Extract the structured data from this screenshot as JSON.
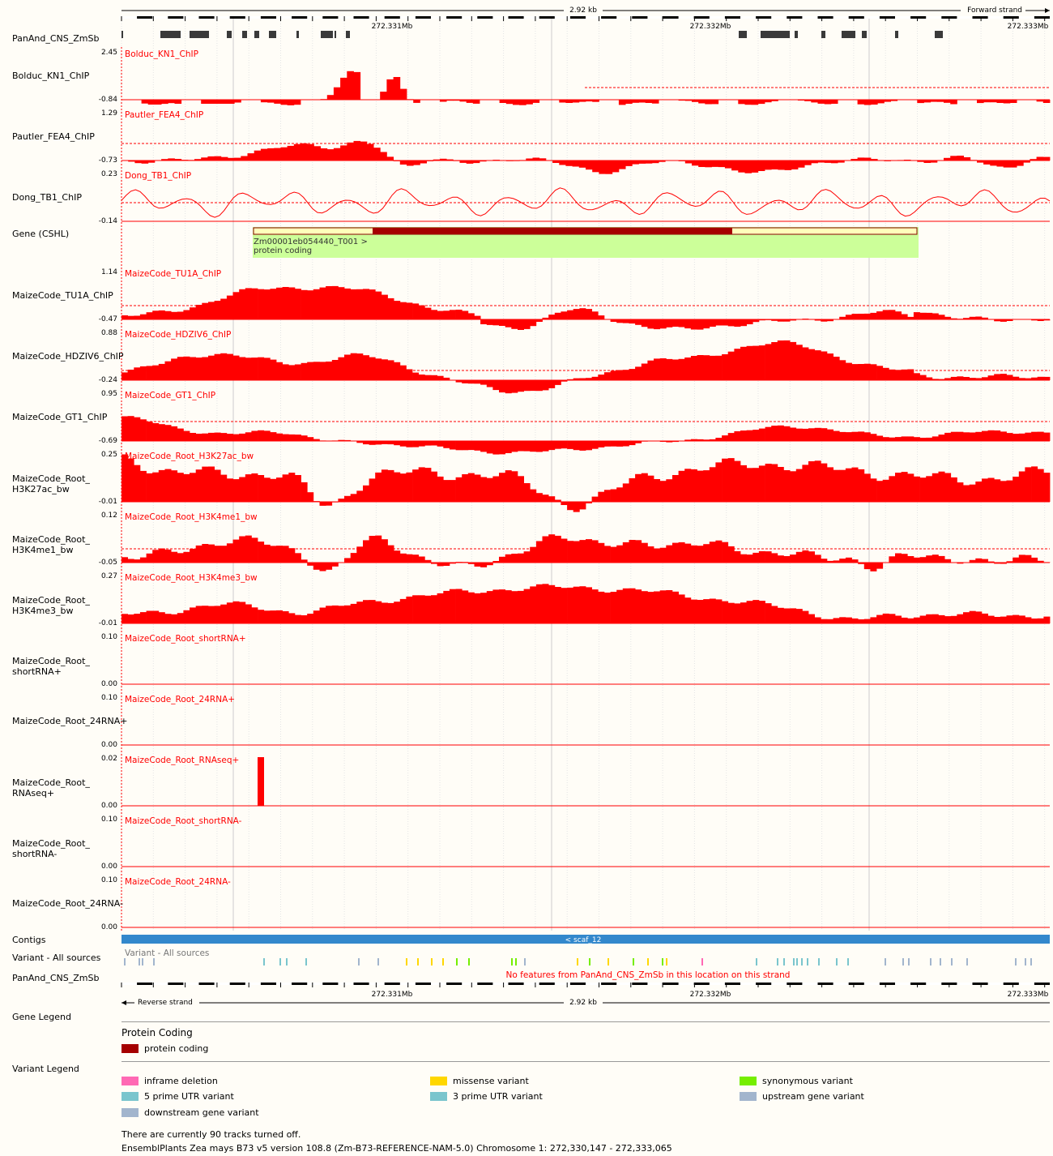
{
  "header": {
    "span_label": "2.92 kb",
    "strand_top": "Forward strand",
    "strand_bottom": "Reverse strand",
    "ticks": [
      "272.331Mb",
      "272.332Mb",
      "272.333Mb"
    ]
  },
  "labels": {
    "panand_top": "PanAnd_CNS_ZmSb",
    "bolduc": "Bolduc_KN1_ChIP",
    "pautler": "Pautler_FEA4_ChIP",
    "dong": "Dong_TB1_ChIP",
    "gene": "Gene (CSHL)",
    "tu1a": "MaizeCode_TU1A_ChIP",
    "hdziv6": "MaizeCode_HDZIV6_ChIP",
    "gt1": "MaizeCode_GT1_ChIP",
    "h3k27ac": "MaizeCode_Root_\nH3K27ac_bw",
    "h3k4me1": "MaizeCode_Root_\nH3K4me1_bw",
    "h3k4me3": "MaizeCode_Root_\nH3K4me3_bw",
    "shortrna_p": "MaizeCode_Root_\nshortRNA+",
    "rna24_p": "MaizeCode_Root_24RNA+",
    "rnaseq_p": "MaizeCode_Root_\nRNAseq+",
    "shortrna_m": "MaizeCode_Root_\nshortRNA-",
    "rna24_m": "MaizeCode_Root_24RNA-",
    "contigs": "Contigs",
    "variant": "Variant - All sources",
    "panand_bottom": "PanAnd_CNS_ZmSb"
  },
  "tracks": [
    {
      "key": "bolduc",
      "title": "Bolduc_KN1_ChIP",
      "max": "2.45",
      "min": "-0.84"
    },
    {
      "key": "pautler",
      "title": "Pautler_FEA4_ChIP",
      "max": "1.29",
      "min": "-0.73"
    },
    {
      "key": "dong",
      "title": "Dong_TB1_ChIP",
      "max": "0.23",
      "min": "-0.14"
    },
    {
      "key": "tu1a",
      "title": "MaizeCode_TU1A_ChIP",
      "max": "1.14",
      "min": "-0.47"
    },
    {
      "key": "hdziv6",
      "title": "MaizeCode_HDZIV6_ChIP",
      "max": "0.88",
      "min": "-0.24"
    },
    {
      "key": "gt1",
      "title": "MaizeCode_GT1_ChIP",
      "max": "0.95",
      "min": "-0.69"
    },
    {
      "key": "h3k27ac",
      "title": "MaizeCode_Root_H3K27ac_bw",
      "max": "0.25",
      "min": "-0.01"
    },
    {
      "key": "h3k4me1",
      "title": "MaizeCode_Root_H3K4me1_bw",
      "max": "0.12",
      "min": "-0.05"
    },
    {
      "key": "h3k4me3",
      "title": "MaizeCode_Root_H3K4me3_bw",
      "max": "0.27",
      "min": "-0.01"
    },
    {
      "key": "shortrna_p",
      "title": "MaizeCode_Root_shortRNA+",
      "max": "0.10",
      "min": "0.00"
    },
    {
      "key": "rna24_p",
      "title": "MaizeCode_Root_24RNA+",
      "max": "0.10",
      "min": "0.00"
    },
    {
      "key": "rnaseq_p",
      "title": "MaizeCode_Root_RNAseq+",
      "max": "0.02",
      "min": "0.00"
    },
    {
      "key": "shortrna_m",
      "title": "MaizeCode_Root_shortRNA-",
      "max": "0.10",
      "min": "0.00"
    },
    {
      "key": "rna24_m",
      "title": "MaizeCode_Root_24RNA-",
      "max": "0.10",
      "min": "0.00"
    }
  ],
  "gene": {
    "name": "Zm00001eb054440_T001 >",
    "biotype": "protein coding"
  },
  "contig": "< scaf_12",
  "variant_track_title": "Variant - All sources",
  "no_features": "No features from PanAnd_CNS_ZmSb in this location on this strand",
  "legend": {
    "gene_legend": "Gene Legend",
    "protein_coding_title": "Protein Coding",
    "protein_coding_item": "protein coding",
    "variant_legend": "Variant Legend",
    "variant_items": [
      {
        "label": "inframe deletion",
        "color": "#ff69b4"
      },
      {
        "label": "missense variant",
        "color": "#ffd700"
      },
      {
        "label": "synonymous variant",
        "color": "#76ee00"
      },
      {
        "label": "5 prime UTR variant",
        "color": "#7ac5cd"
      },
      {
        "label": "3 prime UTR variant",
        "color": "#7ac5cd"
      },
      {
        "label": "upstream gene variant",
        "color": "#a2b5cd"
      },
      {
        "label": "downstream gene variant",
        "color": "#a2b5cd"
      }
    ]
  },
  "footer": {
    "tracks_off": "There are currently 90 tracks turned off.",
    "assembly": "EnsemblPlants Zea mays B73 v5 version 108.8 (Zm-B73-REFERENCE-NAM-5.0) Chromosome 1: 272,330,147 - 272,333,065"
  },
  "colors": {
    "signal": "#ff0000",
    "gene_utr": "#ccff99",
    "gene_cds": "#a50000",
    "contig": "#3388cc"
  }
}
